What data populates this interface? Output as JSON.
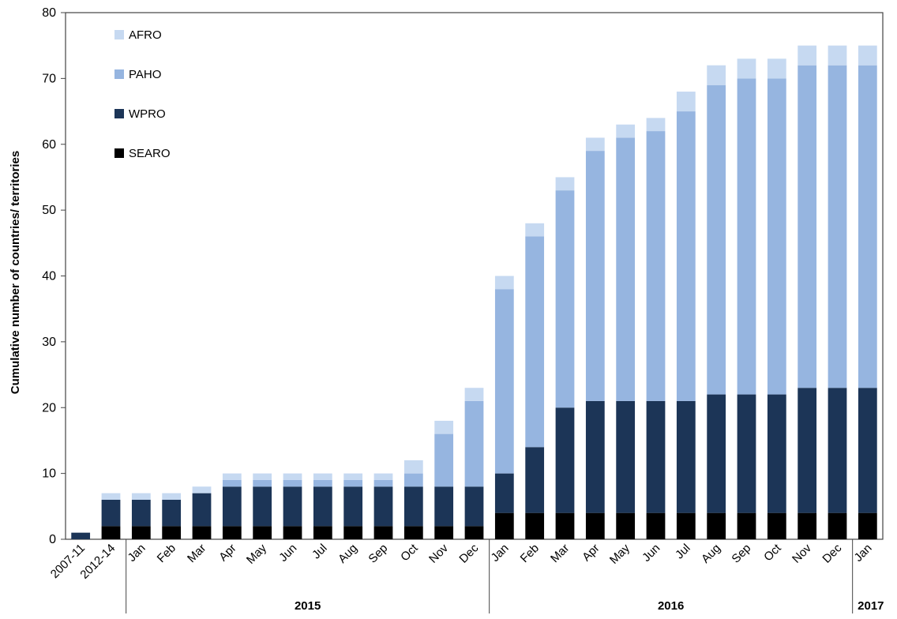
{
  "chart_data": {
    "type": "bar",
    "stacked": true,
    "ylabel": "Cumulative number of countries/ territories",
    "ylim": [
      0,
      80
    ],
    "yticks": [
      0,
      10,
      20,
      30,
      40,
      50,
      60,
      70,
      80
    ],
    "grid": false,
    "legend_position": "top-left",
    "categories": [
      "2007-11",
      "2012-14",
      "Jan",
      "Feb",
      "Mar",
      "Apr",
      "May",
      "Jun",
      "Jul",
      "Aug",
      "Sep",
      "Oct",
      "Nov",
      "Dec",
      "Jan",
      "Feb",
      "Mar",
      "Apr",
      "May",
      "Jun",
      "Jul",
      "Aug",
      "Sep",
      "Oct",
      "Nov",
      "Dec",
      "Jan"
    ],
    "year_groups": [
      {
        "label": "2015",
        "start": 2,
        "end": 13
      },
      {
        "label": "2016",
        "start": 14,
        "end": 25
      },
      {
        "label": "2017",
        "start": 26,
        "end": 26
      }
    ],
    "series": [
      {
        "name": "SEARO",
        "color": "#000000",
        "values": [
          0,
          2,
          2,
          2,
          2,
          2,
          2,
          2,
          2,
          2,
          2,
          2,
          2,
          2,
          4,
          4,
          4,
          4,
          4,
          4,
          4,
          4,
          4,
          4,
          4,
          4,
          4
        ]
      },
      {
        "name": "WPRO",
        "color": "#1c3557",
        "values": [
          1,
          4,
          4,
          4,
          5,
          6,
          6,
          6,
          6,
          6,
          6,
          6,
          6,
          6,
          6,
          10,
          16,
          17,
          17,
          17,
          17,
          18,
          18,
          18,
          19,
          19,
          19
        ]
      },
      {
        "name": "PAHO",
        "color": "#96b5e0",
        "values": [
          0,
          0,
          0,
          0,
          0,
          1,
          1,
          1,
          1,
          1,
          1,
          2,
          8,
          13,
          28,
          32,
          33,
          38,
          40,
          41,
          44,
          47,
          48,
          48,
          49,
          49,
          49
        ]
      },
      {
        "name": "AFRO",
        "color": "#c6d9f1",
        "values": [
          0,
          1,
          1,
          1,
          1,
          1,
          1,
          1,
          1,
          1,
          1,
          2,
          2,
          2,
          2,
          2,
          2,
          2,
          2,
          2,
          3,
          3,
          3,
          3,
          3,
          3,
          3
        ]
      }
    ],
    "legend_order": [
      "AFRO",
      "PAHO",
      "WPRO",
      "SEARO"
    ]
  }
}
